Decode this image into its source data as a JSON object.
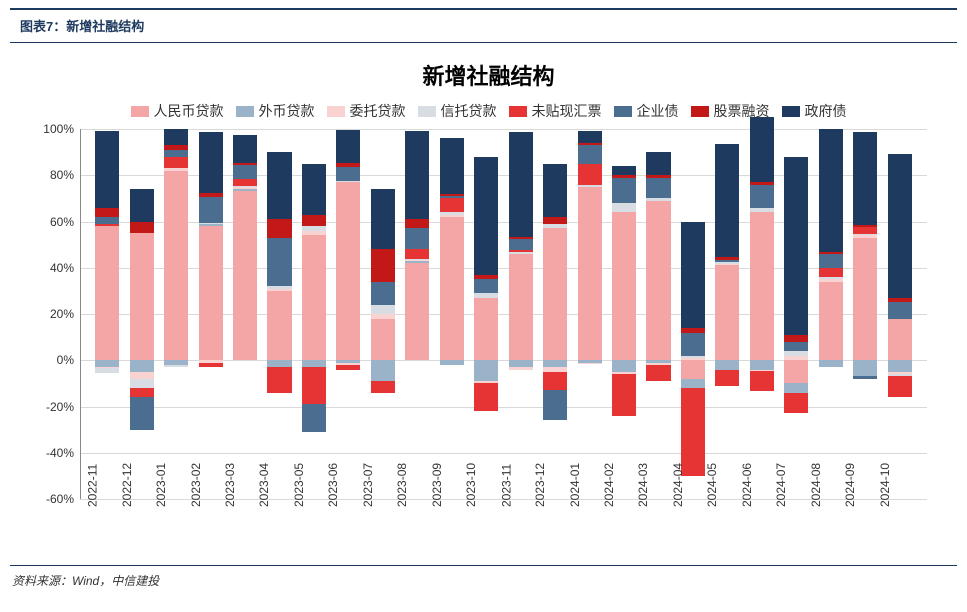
{
  "header": {
    "label": "图表7：新增社融结构"
  },
  "chart": {
    "type": "stacked-bar",
    "title": "新增社融结构",
    "background_color": "#ffffff",
    "grid_color": "#d9d9d9",
    "title_fontsize": 22,
    "label_fontsize": 12,
    "y_axis": {
      "min": -60,
      "max": 100,
      "ticks": [
        -60,
        -40,
        -20,
        0,
        20,
        40,
        60,
        80,
        100
      ],
      "format": "percent"
    },
    "categories": [
      "2022-11",
      "2022-12",
      "2023-01",
      "2023-02",
      "2023-03",
      "2023-04",
      "2023-05",
      "2023-06",
      "2023-07",
      "2023-08",
      "2023-09",
      "2023-10",
      "2023-11",
      "2023-12",
      "2024-01",
      "2024-02",
      "2024-03",
      "2024-04",
      "2024-05",
      "2024-06",
      "2024-07",
      "2024-08",
      "2024-09",
      "2024-10"
    ],
    "series": [
      {
        "name": "人民币贷款",
        "color": "#f4a6a6"
      },
      {
        "name": "外币贷款",
        "color": "#9bb3c9"
      },
      {
        "name": "委托贷款",
        "color": "#f9d2d2"
      },
      {
        "name": "信托贷款",
        "color": "#d7dde3"
      },
      {
        "name": "未贴现汇票",
        "color": "#e63434"
      },
      {
        "name": "企业债",
        "color": "#4b6d8f"
      },
      {
        "name": "股票融资",
        "color": "#c21818"
      },
      {
        "name": "政府债",
        "color": "#1f3a5f"
      }
    ],
    "data": [
      [
        58,
        -3,
        -0.5,
        -2,
        1,
        3,
        4,
        33
      ],
      [
        55,
        -5,
        -3,
        -4,
        -4,
        -14,
        5,
        14
      ],
      [
        82,
        -2,
        1,
        -1,
        5,
        3,
        2,
        7
      ],
      [
        58,
        1,
        -1,
        0.5,
        -2,
        11,
        2,
        26
      ],
      [
        73,
        1,
        1,
        0.5,
        3,
        6,
        1,
        12
      ],
      [
        30,
        -3,
        1,
        1,
        -11,
        21,
        8,
        29
      ],
      [
        54,
        -3,
        2,
        2,
        -16,
        -12,
        5,
        22
      ],
      [
        77,
        -1,
        -1,
        0.5,
        -2,
        6,
        2,
        14
      ],
      [
        18,
        -9,
        2,
        4,
        -5,
        10,
        14,
        26
      ],
      [
        42,
        1,
        0.5,
        0.5,
        4,
        9,
        4,
        38
      ],
      [
        62,
        -2,
        1,
        1,
        6,
        1,
        1,
        24
      ],
      [
        27,
        -9,
        -1,
        2,
        -12,
        6,
        2,
        51
      ],
      [
        46,
        -3,
        -1,
        1,
        0.5,
        5,
        1,
        45
      ],
      [
        57,
        -3,
        -2,
        2,
        -8,
        -13,
        3,
        23
      ],
      [
        75,
        -1,
        -0.5,
        1,
        9,
        8,
        1,
        5
      ],
      [
        64,
        -5,
        -1,
        4,
        -18,
        11,
        1,
        4
      ],
      [
        69,
        -1,
        -1,
        1,
        -7,
        9,
        1,
        10
      ],
      [
        -8,
        -4,
        1,
        1,
        -38,
        10,
        2,
        46
      ],
      [
        41,
        -4,
        0.5,
        1,
        -7,
        1,
        1,
        49
      ],
      [
        64,
        -4,
        -0.5,
        2,
        -9,
        10,
        1,
        28
      ],
      [
        -10,
        -4,
        2,
        2,
        -9,
        4,
        3,
        77
      ],
      [
        34,
        -3,
        1,
        1,
        4,
        6,
        1,
        53
      ],
      [
        53,
        -7,
        1,
        0.5,
        3,
        -1,
        1,
        40
      ],
      [
        18,
        -5,
        -1,
        -1,
        -9,
        7,
        2,
        62
      ]
    ],
    "bar_width": 0.7
  },
  "source": {
    "text": "资料来源：Wind，中信建投"
  }
}
